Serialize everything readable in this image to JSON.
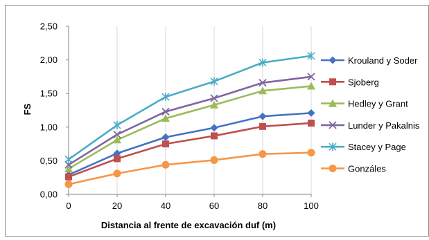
{
  "chart_data": {
    "type": "line",
    "title": "",
    "xlabel": "Distancia al frente de excavación duf (m)",
    "ylabel": "FS",
    "x": [
      0,
      20,
      40,
      60,
      80,
      100
    ],
    "x_tick_labels": [
      "0",
      "20",
      "40",
      "60",
      "80",
      "100"
    ],
    "xlim": [
      0,
      100
    ],
    "ylim": [
      0,
      2.5
    ],
    "y_tick_labels": [
      "0,00",
      "0,50",
      "1,00",
      "1,50",
      "2,00",
      "2,50"
    ],
    "grid": "vertical",
    "legend_position": "right",
    "series": [
      {
        "name": "Krouland y Soder",
        "color": "#4472C4",
        "marker": "diamond",
        "values": [
          0.29,
          0.61,
          0.85,
          0.99,
          1.16,
          1.21
        ]
      },
      {
        "name": "Sjoberg",
        "color": "#C0504D",
        "marker": "square",
        "values": [
          0.26,
          0.53,
          0.75,
          0.87,
          1.01,
          1.06
        ]
      },
      {
        "name": "Hedley y Grant",
        "color": "#9BBB59",
        "marker": "triangle",
        "values": [
          0.38,
          0.81,
          1.13,
          1.33,
          1.54,
          1.61
        ]
      },
      {
        "name": "Lunder y Pakalnis",
        "color": "#8064A2",
        "marker": "x",
        "values": [
          0.44,
          0.89,
          1.23,
          1.43,
          1.66,
          1.75
        ]
      },
      {
        "name": "Stacey y Page",
        "color": "#4BACC6",
        "marker": "star",
        "values": [
          0.52,
          1.03,
          1.45,
          1.68,
          1.96,
          2.06
        ]
      },
      {
        "name": "Gonzáles",
        "color": "#F79646",
        "marker": "circle",
        "values": [
          0.15,
          0.31,
          0.44,
          0.51,
          0.6,
          0.62
        ]
      }
    ]
  }
}
